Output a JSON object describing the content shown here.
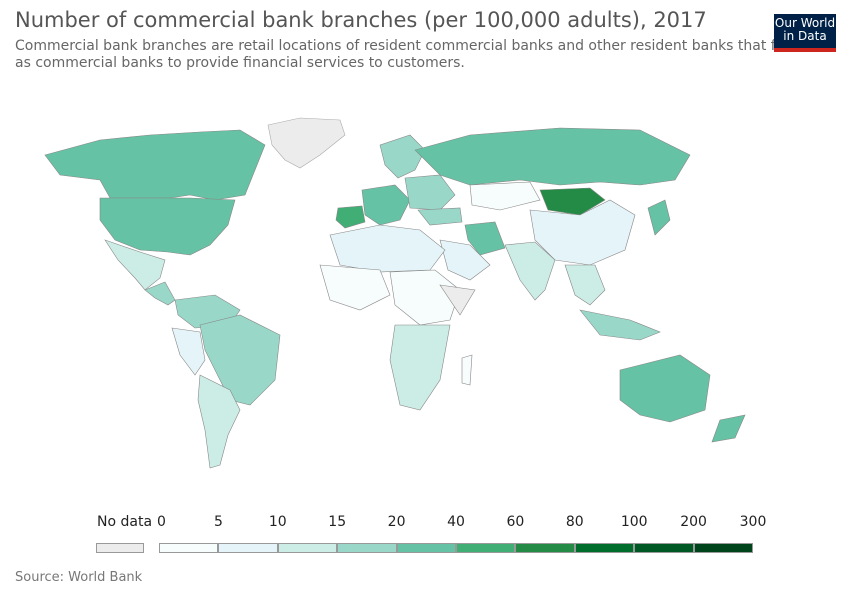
{
  "header": {
    "title": "Number of commercial bank branches (per 100,000 adults), 2017",
    "subtitle": "Commercial bank branches are retail locations of resident commercial banks and other resident banks that function as commercial banks to provide financial services to customers."
  },
  "logo": {
    "text": "Our World in Data"
  },
  "legend": {
    "no_data_label": "No data",
    "no_data_color": "#ececec",
    "bins": [
      "0",
      "5",
      "10",
      "15",
      "20",
      "40",
      "60",
      "80",
      "100",
      "200",
      "300"
    ],
    "colors": [
      "#f7fcfd",
      "#e5f4f9",
      "#ccece6",
      "#99d8c9",
      "#66c2a4",
      "#41ae76",
      "#238b45",
      "#006d2c",
      "#005824",
      "#00441b"
    ]
  },
  "source": "Source: World Bank"
}
